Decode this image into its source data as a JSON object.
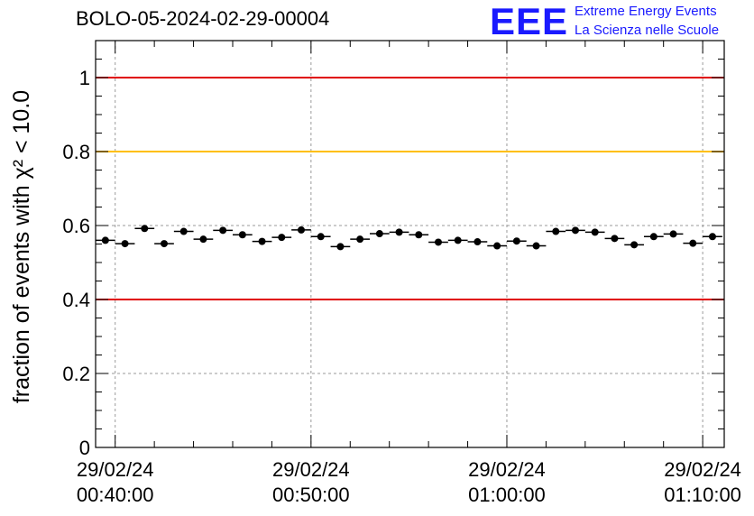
{
  "header": {
    "title": "BOLO-05-2024-02-29-00004",
    "logo_text": "EEE",
    "logo_line1": "Extreme Energy Events",
    "logo_line2": "La Scienza nelle Scuole",
    "logo_color": "#1a1aff"
  },
  "chart_data": {
    "type": "scatter",
    "title": "BOLO-05-2024-02-29-00004",
    "ylabel": "fraction of events with χ² < 10.0",
    "xlabel": "",
    "ylim": [
      0,
      1.1
    ],
    "y_ticks": [
      0,
      0.2,
      0.4,
      0.6,
      0.8,
      1
    ],
    "y_tick_labels": [
      "0",
      "0.2",
      "0.4",
      "0.6",
      "0.8",
      "1"
    ],
    "x_range_minutes": [
      -1.0,
      31.1
    ],
    "x_ticks": [
      {
        "t": 0,
        "date": "29/02/24",
        "time": "00:40:00"
      },
      {
        "t": 10,
        "date": "29/02/24",
        "time": "00:50:00"
      },
      {
        "t": 20,
        "date": "29/02/24",
        "time": "01:00:00"
      },
      {
        "t": 30,
        "date": "29/02/24",
        "time": "01:10:00"
      }
    ],
    "grid": true,
    "reference_lines": [
      {
        "y": 1.0,
        "color": "#e00000"
      },
      {
        "y": 0.8,
        "color": "#ffbf00"
      },
      {
        "y": 0.4,
        "color": "#e00000"
      }
    ],
    "series": [
      {
        "color": "#000000",
        "points": [
          {
            "t": -0.5,
            "y": 0.56
          },
          {
            "t": 0.5,
            "y": 0.551
          },
          {
            "t": 1.5,
            "y": 0.592
          },
          {
            "t": 2.5,
            "y": 0.551
          },
          {
            "t": 3.5,
            "y": 0.584
          },
          {
            "t": 4.5,
            "y": 0.563
          },
          {
            "t": 5.5,
            "y": 0.587
          },
          {
            "t": 6.5,
            "y": 0.575
          },
          {
            "t": 7.5,
            "y": 0.557
          },
          {
            "t": 8.5,
            "y": 0.568
          },
          {
            "t": 9.5,
            "y": 0.588
          },
          {
            "t": 10.5,
            "y": 0.57
          },
          {
            "t": 11.5,
            "y": 0.543
          },
          {
            "t": 12.5,
            "y": 0.563
          },
          {
            "t": 13.5,
            "y": 0.578
          },
          {
            "t": 14.5,
            "y": 0.582
          },
          {
            "t": 15.5,
            "y": 0.575
          },
          {
            "t": 16.5,
            "y": 0.555
          },
          {
            "t": 17.5,
            "y": 0.56
          },
          {
            "t": 18.5,
            "y": 0.556
          },
          {
            "t": 19.5,
            "y": 0.545
          },
          {
            "t": 20.5,
            "y": 0.558
          },
          {
            "t": 21.5,
            "y": 0.545
          },
          {
            "t": 22.5,
            "y": 0.584
          },
          {
            "t": 23.5,
            "y": 0.587
          },
          {
            "t": 24.5,
            "y": 0.582
          },
          {
            "t": 25.5,
            "y": 0.565
          },
          {
            "t": 26.5,
            "y": 0.548
          },
          {
            "t": 27.5,
            "y": 0.57
          },
          {
            "t": 28.5,
            "y": 0.577
          },
          {
            "t": 29.5,
            "y": 0.552
          },
          {
            "t": 30.5,
            "y": 0.57
          }
        ],
        "y_error": 0.008,
        "x_half_width": 0.5
      }
    ]
  }
}
